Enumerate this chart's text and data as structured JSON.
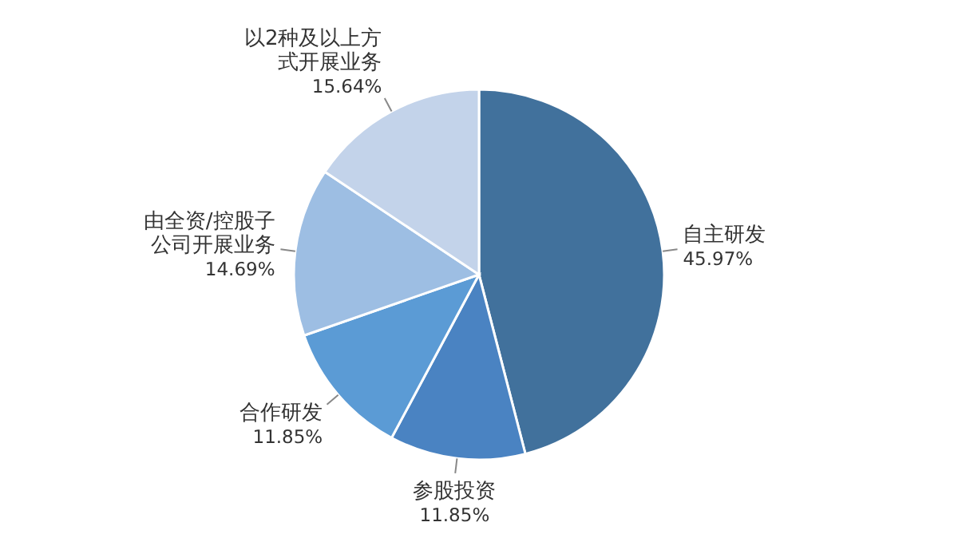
{
  "chart_data": {
    "type": "pie",
    "categories": [
      "自主研发",
      "参股投资",
      "合作研发",
      "由全资/控股子公司开展业务",
      "以2种及以上方式开展业务"
    ],
    "values": [
      45.97,
      11.85,
      11.85,
      14.69,
      15.64
    ],
    "value_labels": [
      "45.97%",
      "11.85%",
      "11.85%",
      "14.69%",
      "15.64%"
    ],
    "colors": [
      "#41719c",
      "#4a83c2",
      "#5b9bd5",
      "#9dbee3",
      "#c3d3ea"
    ]
  }
}
